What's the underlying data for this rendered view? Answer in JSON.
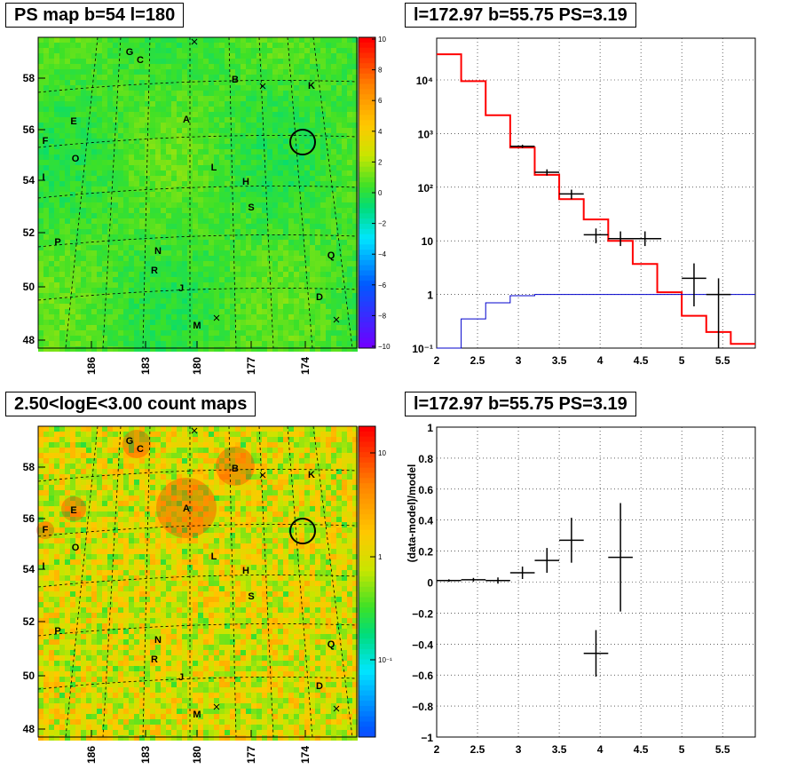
{
  "panels": {
    "map_top_title": "PS map b=54 l=180",
    "map_bottom_title": "2.50<logE<3.00 count maps",
    "spectrum_title": "l=172.97 b=55.75 PS=3.19",
    "residual_title": "l=172.97 b=55.75 PS=3.19"
  },
  "colors": {
    "data": "#000000",
    "model": "#ff0000",
    "background": "#0000cc"
  },
  "chart_data": [
    {
      "type": "heatmap",
      "title": "PS map b=54 l=180",
      "xlabel": "",
      "ylabel": "",
      "x_ticks": [
        "186",
        "183",
        "180",
        "177",
        "174"
      ],
      "y_ticks": [
        "58",
        "56",
        "54",
        "52",
        "50",
        "48"
      ],
      "zlim": [
        -10,
        10
      ],
      "colorbar_ticks": [
        "10",
        "8",
        "6",
        "4",
        "2",
        "0",
        "−2",
        "−4",
        "−6",
        "−8",
        "−10"
      ],
      "source_labels": [
        "G",
        "C",
        "B",
        "K",
        "E",
        "A",
        "F",
        "O",
        "L",
        "H",
        "I",
        "S",
        "P",
        "N",
        "Q",
        "R",
        "J",
        "D",
        "M"
      ],
      "circle_center": {
        "l": 172.97,
        "b": 55.75
      },
      "grid": true
    },
    {
      "type": "heatmap",
      "title": "2.50<logE<3.00 count maps",
      "x_ticks": [
        "186",
        "183",
        "180",
        "177",
        "174"
      ],
      "y_ticks": [
        "58",
        "56",
        "54",
        "52",
        "50",
        "48"
      ],
      "zscale": "log",
      "colorbar_ticks": [
        "10",
        "1",
        "10⁻¹"
      ],
      "source_labels": [
        "G",
        "C",
        "B",
        "K",
        "E",
        "A",
        "F",
        "O",
        "L",
        "H",
        "I",
        "S",
        "P",
        "N",
        "Q",
        "R",
        "J",
        "D",
        "M"
      ],
      "grid": true
    },
    {
      "type": "line",
      "title": "l=172.97 b=55.75 PS=3.19",
      "xlabel": "",
      "ylabel": "",
      "xlim": [
        2,
        5.9
      ],
      "ylim": [
        0.1,
        60000
      ],
      "yscale": "log",
      "x_ticks": [
        "2",
        "2.5",
        "3",
        "3.5",
        "4",
        "4.5",
        "5",
        "5.5"
      ],
      "y_ticks": [
        "10⁻¹",
        "1",
        "10",
        "10²",
        "10³",
        "10⁴"
      ],
      "grid": true,
      "series": [
        {
          "role": "model",
          "style": "step",
          "edges": [
            2.0,
            2.3,
            2.6,
            2.9,
            3.2,
            3.5,
            3.8,
            4.1,
            4.4,
            4.7,
            5.0,
            5.3,
            5.6,
            5.9
          ],
          "values": [
            30000,
            9500,
            2200,
            550,
            170,
            60,
            25,
            10,
            3.7,
            1.1,
            0.4,
            0.2,
            0.12
          ]
        },
        {
          "role": "background",
          "style": "step",
          "edges": [
            2.0,
            2.3,
            2.6,
            2.9,
            3.2,
            3.5,
            3.8,
            4.1,
            4.4,
            4.7,
            5.0,
            5.3,
            5.6,
            5.9
          ],
          "values": [
            0.1,
            0.35,
            0.7,
            0.95,
            1.0,
            1.0,
            1.0,
            1.0,
            1.0,
            1.0,
            1.0,
            1.0,
            1.0
          ]
        },
        {
          "role": "data",
          "style": "errorbar",
          "points": [
            {
              "x": 3.05,
              "y": 580,
              "xerr": 0.15,
              "ylo": 540,
              "yhi": 620
            },
            {
              "x": 3.35,
              "y": 190,
              "xerr": 0.15,
              "ylo": 165,
              "yhi": 215
            },
            {
              "x": 3.65,
              "y": 75,
              "xerr": 0.15,
              "ylo": 60,
              "yhi": 90
            },
            {
              "x": 3.95,
              "y": 13,
              "xerr": 0.15,
              "ylo": 9,
              "yhi": 17
            },
            {
              "x": 4.25,
              "y": 11,
              "xerr": 0.15,
              "ylo": 8,
              "yhi": 15
            },
            {
              "x": 4.55,
              "y": 11,
              "xerr": 0.2,
              "ylo": 8,
              "yhi": 15
            },
            {
              "x": 5.15,
              "y": 2.0,
              "xerr": 0.15,
              "ylo": 0.6,
              "yhi": 3.8
            },
            {
              "x": 5.45,
              "y": 1.0,
              "xerr": 0.15,
              "ylo": 0.1,
              "yhi": 2.0
            }
          ]
        }
      ]
    },
    {
      "type": "scatter",
      "title": "l=172.97 b=55.75 PS=3.19",
      "xlabel": "",
      "ylabel": "(data-model)/model",
      "xlim": [
        2,
        5.9
      ],
      "ylim": [
        -1,
        1
      ],
      "x_ticks": [
        "2",
        "2.5",
        "3",
        "3.5",
        "4",
        "4.5",
        "5",
        "5.5"
      ],
      "y_ticks": [
        "1",
        "0.8",
        "0.6",
        "0.4",
        "0.2",
        "0",
        "−0.2",
        "−0.4",
        "−0.6",
        "−0.8",
        "−1"
      ],
      "grid": true,
      "points": [
        {
          "x": 2.15,
          "y": 0.01,
          "xerr": 0.15,
          "err": 0.008
        },
        {
          "x": 2.45,
          "y": 0.015,
          "xerr": 0.15,
          "err": 0.012
        },
        {
          "x": 2.75,
          "y": 0.01,
          "xerr": 0.15,
          "err": 0.02
        },
        {
          "x": 3.05,
          "y": 0.06,
          "xerr": 0.15,
          "err": 0.04
        },
        {
          "x": 3.35,
          "y": 0.14,
          "xerr": 0.15,
          "err": 0.08
        },
        {
          "x": 3.65,
          "y": 0.27,
          "xerr": 0.15,
          "err": 0.145
        },
        {
          "x": 3.95,
          "y": -0.46,
          "xerr": 0.15,
          "err": 0.15
        },
        {
          "x": 4.25,
          "y": 0.16,
          "xerr": 0.15,
          "err": 0.35
        }
      ]
    }
  ]
}
